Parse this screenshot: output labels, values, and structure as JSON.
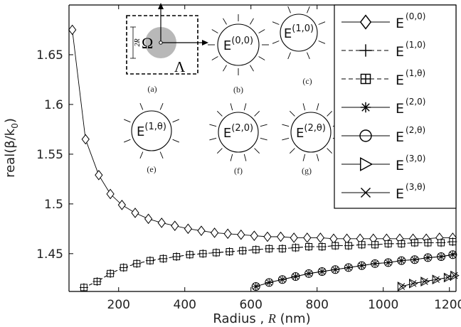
{
  "chart_data": {
    "type": "line",
    "xlabel": {
      "main": "Radius ,",
      "var": "R",
      "unit": "(nm)"
    },
    "ylabel": {
      "pre": "real(β/k",
      "sub": "0",
      "post": ")"
    },
    "xlim": [
      50,
      1220
    ],
    "ylim": [
      1.412,
      1.7
    ],
    "xticks": [
      "200",
      "400",
      "600",
      "800",
      "1000",
      "1200"
    ],
    "yticks": [
      "1.45",
      "1.5",
      "1.55",
      "1.6",
      "1.65"
    ],
    "grid": false,
    "legend_position": "top-right",
    "series": [
      {
        "name": "E(0,0)",
        "base": "E",
        "sup": "(0,0)",
        "marker": "diamond",
        "line": "solid",
        "x": [
          60,
          100,
          140,
          175,
          210,
          250,
          290,
          330,
          370,
          410,
          450,
          490,
          530,
          570,
          610,
          650,
          690,
          730,
          770,
          810,
          850,
          890,
          930,
          970,
          1010,
          1050,
          1090,
          1130,
          1170,
          1210
        ],
        "y": [
          1.675,
          1.565,
          1.529,
          1.51,
          1.499,
          1.491,
          1.485,
          1.481,
          1.478,
          1.475,
          1.473,
          1.471,
          1.47,
          1.469,
          1.468,
          1.467,
          1.467,
          1.466,
          1.466,
          1.466,
          1.465,
          1.465,
          1.465,
          1.465,
          1.465,
          1.465,
          1.465,
          1.465,
          1.466,
          1.466
        ]
      },
      {
        "name": "E(1,0)",
        "base": "E",
        "sup": "(1,0)",
        "marker": "plus",
        "line": "dashed",
        "x": [
          95,
          135,
          175,
          215,
          255,
          295,
          335,
          375,
          415,
          455,
          495,
          535,
          575,
          615,
          655,
          695,
          735,
          775,
          815,
          855,
          895,
          935,
          975,
          1015,
          1055,
          1095,
          1135,
          1175,
          1210
        ],
        "y": [
          1.416,
          1.422,
          1.43,
          1.436,
          1.44,
          1.443,
          1.445,
          1.447,
          1.449,
          1.45,
          1.451,
          1.452,
          1.453,
          1.454,
          1.455,
          1.455,
          1.456,
          1.457,
          1.457,
          1.458,
          1.458,
          1.459,
          1.459,
          1.46,
          1.46,
          1.461,
          1.461,
          1.461,
          1.462
        ]
      },
      {
        "name": "E(1,θ)",
        "base": "E",
        "sup": "(1,θ)",
        "marker": "boxplus",
        "line": "dashed",
        "x": [
          95,
          135,
          175,
          215,
          255,
          295,
          335,
          375,
          415,
          455,
          495,
          535,
          575,
          615,
          655,
          695,
          735,
          775,
          815,
          855,
          895,
          935,
          975,
          1015,
          1055,
          1095,
          1135,
          1175,
          1210
        ],
        "y": [
          1.416,
          1.422,
          1.43,
          1.436,
          1.44,
          1.443,
          1.445,
          1.447,
          1.449,
          1.45,
          1.451,
          1.452,
          1.453,
          1.454,
          1.455,
          1.455,
          1.456,
          1.457,
          1.457,
          1.458,
          1.458,
          1.459,
          1.459,
          1.46,
          1.46,
          1.461,
          1.461,
          1.461,
          1.462
        ]
      },
      {
        "name": "E(2,0)",
        "base": "E",
        "sup": "(2,0)",
        "marker": "asterisk",
        "line": "solid",
        "x": [
          615,
          655,
          695,
          735,
          775,
          815,
          855,
          895,
          935,
          975,
          1015,
          1055,
          1095,
          1135,
          1175,
          1210
        ],
        "y": [
          1.417,
          1.421,
          1.424,
          1.427,
          1.43,
          1.432,
          1.434,
          1.436,
          1.438,
          1.44,
          1.441,
          1.443,
          1.444,
          1.446,
          1.447,
          1.449
        ]
      },
      {
        "name": "E(2,θ)",
        "base": "E",
        "sup": "(2,θ)",
        "marker": "circle",
        "line": "solid",
        "x": [
          615,
          655,
          695,
          735,
          775,
          815,
          855,
          895,
          935,
          975,
          1015,
          1055,
          1095,
          1135,
          1175,
          1210
        ],
        "y": [
          1.417,
          1.421,
          1.424,
          1.427,
          1.43,
          1.432,
          1.434,
          1.436,
          1.438,
          1.44,
          1.441,
          1.443,
          1.444,
          1.446,
          1.447,
          1.449
        ]
      },
      {
        "name": "E(3,0)",
        "base": "E",
        "sup": "(3,0)",
        "marker": "triangle-right",
        "line": "solid",
        "x": [
          1055,
          1090,
          1125,
          1160,
          1195,
          1215
        ],
        "y": [
          1.417,
          1.42,
          1.422,
          1.424,
          1.426,
          1.428
        ]
      },
      {
        "name": "E(3,θ)",
        "base": "E",
        "sup": "(3,θ)",
        "marker": "x",
        "line": "solid",
        "x": [
          1055,
          1090,
          1125,
          1160,
          1195,
          1215
        ],
        "y": [
          1.417,
          1.42,
          1.422,
          1.424,
          1.426,
          1.428
        ]
      }
    ]
  },
  "insets": {
    "a": {
      "label": "(a)",
      "omega": "Ω",
      "lambda": "Λ",
      "dim": "2R"
    },
    "modes": [
      {
        "key": "b",
        "label": "(b)",
        "base": "E",
        "sup": "(0,0)"
      },
      {
        "key": "c",
        "label": "(c)",
        "base": "E",
        "sup": "(1,0)"
      },
      {
        "key": "e",
        "label": "(e)",
        "base": "E",
        "sup": "(1,θ)"
      },
      {
        "key": "f",
        "label": "(f)",
        "base": "E",
        "sup": "(2,0)"
      },
      {
        "key": "g",
        "label": "(g)",
        "base": "E",
        "sup": "(2,θ)"
      }
    ]
  }
}
